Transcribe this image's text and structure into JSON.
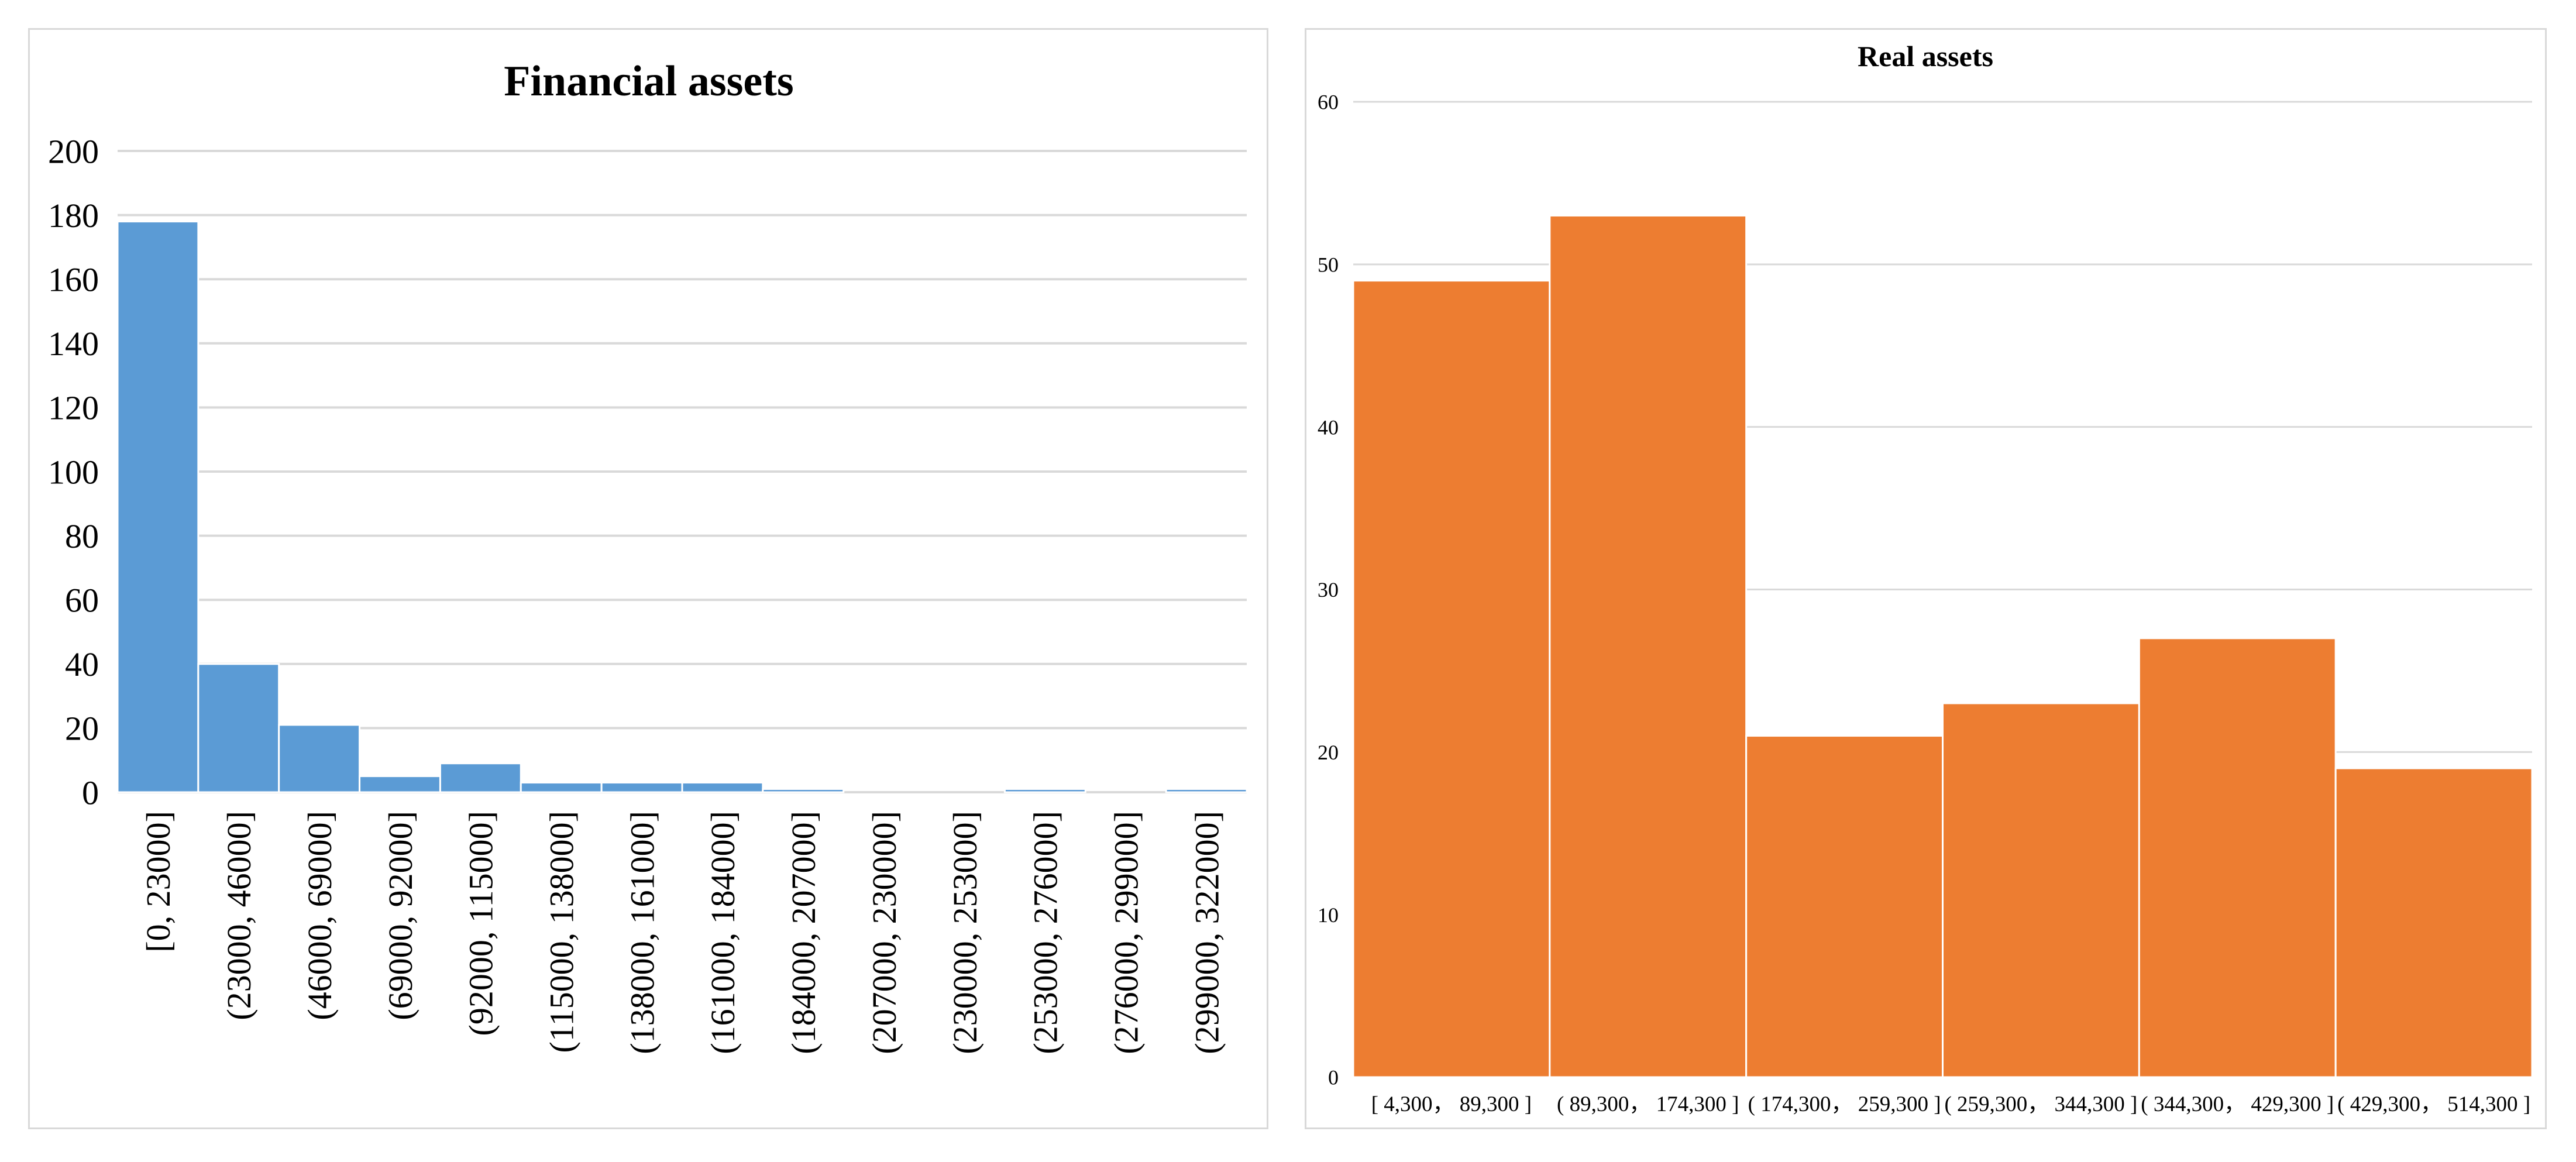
{
  "chart_data": [
    {
      "type": "bar",
      "title": "Financial assets",
      "xlabel": "",
      "ylabel": "",
      "categories": [
        "[0, 23000]",
        "(23000, 46000]",
        "(46000, 69000]",
        "(69000, 92000]",
        "(92000, 115000]",
        "(115000, 138000]",
        "(138000, 161000]",
        "(161000, 184000]",
        "(184000, 207000]",
        "(207000, 230000]",
        "(230000, 253000]",
        "(253000, 276000]",
        "(276000, 299000]",
        "(299000, 322000]"
      ],
      "values": [
        178,
        40,
        21,
        5,
        9,
        3,
        3,
        3,
        1,
        0,
        0,
        1,
        0,
        1
      ],
      "ylim": [
        0,
        200
      ],
      "yticks": [
        "0",
        "20",
        "40",
        "60",
        "80",
        "100",
        "120",
        "140",
        "160",
        "180",
        "200"
      ],
      "grid": true,
      "legend": "none",
      "color": "#5B9BD5"
    },
    {
      "type": "bar",
      "title": "Real assets",
      "xlabel": "",
      "ylabel": "",
      "categories": [
        "[ 4,300， 89,300 ]",
        "( 89,300， 174,300 ]",
        "( 174,300， 259,300 ]",
        "( 259,300， 344,300 ]",
        "( 344,300， 429,300 ]",
        "( 429,300， 514,300 ]"
      ],
      "values": [
        49,
        53,
        21,
        23,
        27,
        19
      ],
      "ylim": [
        0,
        60
      ],
      "yticks": [
        "0",
        "10",
        "20",
        "30",
        "40",
        "50",
        "60"
      ],
      "grid": true,
      "legend": "none",
      "color": "#ED7D31"
    }
  ]
}
